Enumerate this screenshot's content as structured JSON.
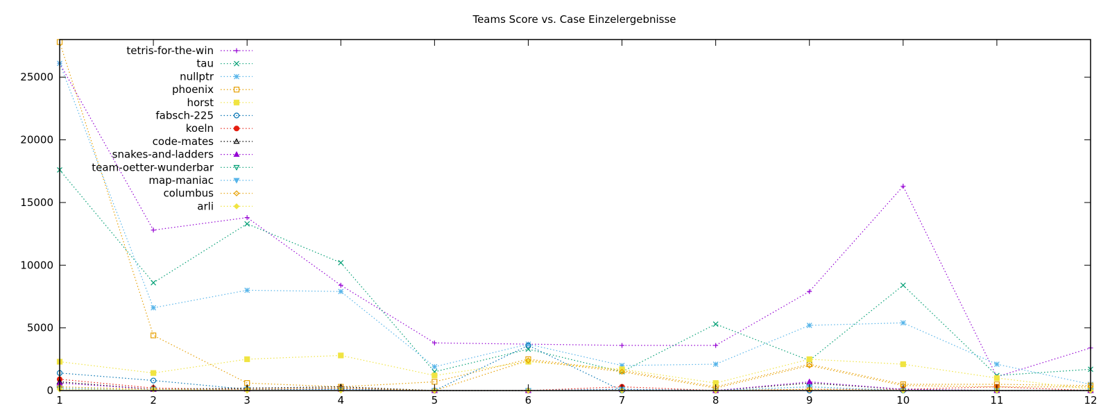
{
  "chart_data": {
    "type": "line",
    "title": "Teams Score vs. Case Einzelergebnisse",
    "xlabel": "",
    "ylabel": "",
    "x": [
      1,
      2,
      3,
      4,
      5,
      6,
      7,
      8,
      9,
      10,
      11,
      12
    ],
    "xlim": [
      1,
      12
    ],
    "ylim": [
      0,
      28000
    ],
    "yticks": [
      0,
      5000,
      10000,
      15000,
      20000,
      25000
    ],
    "xticks": [
      1,
      2,
      3,
      4,
      5,
      6,
      7,
      8,
      9,
      10,
      11,
      12
    ],
    "grid": false,
    "legend_position": "top-left",
    "series": [
      {
        "name": "tetris-for-the-win",
        "color": "#9400d3",
        "marker": "plus",
        "values": [
          26100,
          12800,
          13800,
          8400,
          3800,
          3700,
          3600,
          3600,
          7900,
          16300,
          1100,
          3400
        ]
      },
      {
        "name": "tau",
        "color": "#009e73",
        "marker": "cross",
        "values": [
          17600,
          8600,
          13300,
          10200,
          1500,
          3300,
          1500,
          5300,
          2400,
          8400,
          1200,
          1700
        ]
      },
      {
        "name": "nullptr",
        "color": "#56b4e9",
        "marker": "star",
        "values": [
          26100,
          6600,
          8000,
          7900,
          1900,
          3700,
          2000,
          2100,
          5200,
          5400,
          2100,
          500
        ]
      },
      {
        "name": "phoenix",
        "color": "#e69f00",
        "marker": "box",
        "values": [
          27800,
          4400,
          600,
          300,
          700,
          2500,
          1600,
          300,
          2100,
          500,
          500,
          400
        ]
      },
      {
        "name": "horst",
        "color": "#f0e442",
        "marker": "filled-box",
        "values": [
          2300,
          1400,
          2500,
          2800,
          1200,
          2300,
          1700,
          600,
          2500,
          2100,
          1000,
          100
        ]
      },
      {
        "name": "fabsch-225",
        "color": "#0072b2",
        "marker": "circle",
        "values": [
          1400,
          800,
          100,
          100,
          0,
          3600,
          0,
          0,
          0,
          0,
          0,
          0
        ]
      },
      {
        "name": "koeln",
        "color": "#e51e10",
        "marker": "filled-circle",
        "values": [
          900,
          200,
          100,
          200,
          0,
          0,
          300,
          0,
          100,
          100,
          300,
          0
        ]
      },
      {
        "name": "code-mates",
        "color": "#000000",
        "marker": "triangle",
        "values": [
          700,
          100,
          200,
          300,
          0,
          0,
          100,
          0,
          600,
          100,
          0,
          0
        ]
      },
      {
        "name": "snakes-and-ladders",
        "color": "#9400d3",
        "marker": "filled-triangle",
        "values": [
          600,
          100,
          100,
          100,
          0,
          0,
          100,
          0,
          700,
          100,
          0,
          0
        ]
      },
      {
        "name": "team-oetter-wunderbar",
        "color": "#009e73",
        "marker": "triangle-down",
        "values": [
          100,
          100,
          100,
          100,
          0,
          0,
          100,
          0,
          300,
          0,
          0,
          0
        ]
      },
      {
        "name": "map-maniac",
        "color": "#56b4e9",
        "marker": "filled-triangle-down",
        "values": [
          200,
          100,
          100,
          100,
          0,
          0,
          100,
          0,
          300,
          0,
          0,
          0
        ]
      },
      {
        "name": "columbus",
        "color": "#e69f00",
        "marker": "diamond",
        "values": [
          300,
          100,
          100,
          200,
          0,
          2400,
          1500,
          200,
          2000,
          400,
          300,
          300
        ]
      },
      {
        "name": "arli",
        "color": "#f0e442",
        "marker": "filled-diamond",
        "values": [
          100,
          100,
          0,
          0,
          0,
          0,
          0,
          0,
          100,
          0,
          0,
          0
        ]
      }
    ]
  }
}
